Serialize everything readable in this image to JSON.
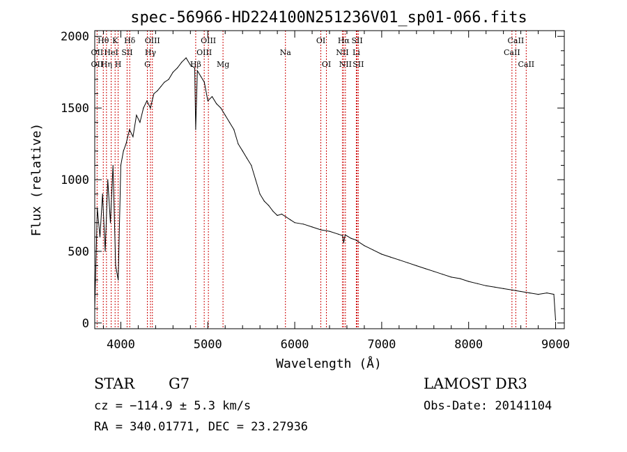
{
  "chart_data": {
    "type": "line",
    "title": "spec-56966-HD224100N251236V01_sp01-066.fits",
    "xlabel": "Wavelength (Å)",
    "ylabel": "Flux (relative)",
    "xlim": [
      3700,
      9100
    ],
    "ylim": [
      -40,
      2040
    ],
    "x_ticks": [
      4000,
      5000,
      6000,
      7000,
      8000,
      9000
    ],
    "y_ticks": [
      0,
      500,
      1000,
      1500,
      2000
    ],
    "series": [
      {
        "name": "flux",
        "x": [
          3700,
          3730,
          3760,
          3790,
          3820,
          3850,
          3880,
          3910,
          3940,
          3970,
          4000,
          4030,
          4060,
          4100,
          4140,
          4180,
          4220,
          4260,
          4300,
          4340,
          4380,
          4420,
          4460,
          4500,
          4550,
          4600,
          4650,
          4700,
          4750,
          4800,
          4850,
          4861,
          4880,
          4920,
          4960,
          5000,
          5050,
          5100,
          5150,
          5200,
          5250,
          5300,
          5350,
          5400,
          5450,
          5500,
          5550,
          5600,
          5650,
          5700,
          5750,
          5800,
          5850,
          5900,
          5950,
          6000,
          6100,
          6200,
          6300,
          6400,
          6500,
          6550,
          6563,
          6580,
          6650,
          6700,
          6800,
          6900,
          7000,
          7100,
          7200,
          7300,
          7400,
          7500,
          7600,
          7700,
          7800,
          7900,
          8000,
          8100,
          8200,
          8300,
          8400,
          8500,
          8600,
          8700,
          8800,
          8900,
          8980,
          9000
        ],
        "y": [
          100,
          800,
          600,
          900,
          500,
          1000,
          700,
          1100,
          400,
          300,
          1100,
          1200,
          1250,
          1350,
          1300,
          1450,
          1400,
          1500,
          1550,
          1500,
          1600,
          1620,
          1650,
          1680,
          1700,
          1750,
          1780,
          1820,
          1850,
          1800,
          1780,
          1350,
          1760,
          1720,
          1680,
          1550,
          1580,
          1530,
          1500,
          1450,
          1400,
          1350,
          1250,
          1200,
          1150,
          1100,
          1000,
          900,
          850,
          820,
          780,
          750,
          760,
          740,
          720,
          700,
          690,
          670,
          650,
          640,
          620,
          610,
          560,
          615,
          590,
          580,
          540,
          510,
          480,
          460,
          440,
          420,
          400,
          380,
          360,
          340,
          320,
          310,
          290,
          275,
          260,
          250,
          240,
          230,
          220,
          210,
          200,
          210,
          200,
          20
        ]
      }
    ],
    "line_labels": [
      {
        "text": "Hθ",
        "wavelength": 3798,
        "row": 1
      },
      {
        "text": "OII",
        "wavelength": 3727,
        "row": 2
      },
      {
        "text": "OII",
        "wavelength": 3727,
        "row": 3
      },
      {
        "text": "K",
        "wavelength": 3934,
        "row": 1
      },
      {
        "text": "HeI",
        "wavelength": 3889,
        "row": 2
      },
      {
        "text": "Hη",
        "wavelength": 3835,
        "row": 3
      },
      {
        "text": "Hδ",
        "wavelength": 4102,
        "row": 1
      },
      {
        "text": "SII",
        "wavelength": 4072,
        "row": 2
      },
      {
        "text": "H",
        "wavelength": 3969,
        "row": 3
      },
      {
        "text": "OIII",
        "wavelength": 4363,
        "row": 1
      },
      {
        "text": "Hγ",
        "wavelength": 4341,
        "row": 2
      },
      {
        "text": "G",
        "wavelength": 4305,
        "row": 3
      },
      {
        "text": "OIII",
        "wavelength": 5007,
        "row": 1
      },
      {
        "text": "OIII",
        "wavelength": 4959,
        "row": 2
      },
      {
        "text": "Hβ",
        "wavelength": 4861,
        "row": 3
      },
      {
        "text": "Mg",
        "wavelength": 5175,
        "row": 3
      },
      {
        "text": "Na",
        "wavelength": 5893,
        "row": 2
      },
      {
        "text": "OI",
        "wavelength": 6300,
        "row": 1
      },
      {
        "text": "OI",
        "wavelength": 6364,
        "row": 3
      },
      {
        "text": "Hα",
        "wavelength": 6563,
        "row": 1
      },
      {
        "text": "SII",
        "wavelength": 6717,
        "row": 1
      },
      {
        "text": "NII",
        "wavelength": 6548,
        "row": 2
      },
      {
        "text": "Li",
        "wavelength": 6708,
        "row": 2
      },
      {
        "text": "NII",
        "wavelength": 6583,
        "row": 3
      },
      {
        "text": "SII",
        "wavelength": 6731,
        "row": 3
      },
      {
        "text": "CaII",
        "wavelength": 8542,
        "row": 1
      },
      {
        "text": "CaII",
        "wavelength": 8498,
        "row": 2
      },
      {
        "text": "CaII",
        "wavelength": 8662,
        "row": 3
      }
    ],
    "line_markers": [
      3727,
      3798,
      3835,
      3889,
      3934,
      3969,
      4072,
      4102,
      4305,
      4341,
      4363,
      4861,
      4959,
      5007,
      5175,
      5893,
      6300,
      6364,
      6548,
      6563,
      6583,
      6708,
      6717,
      6731,
      8498,
      8542,
      8662
    ]
  },
  "footer": {
    "object_type": "STAR",
    "subclass": "G7",
    "survey": "LAMOST DR3",
    "redshift": "cz = −114.9 ± 5.3 km/s",
    "obs_date": "Obs-Date: 20141104",
    "coords": "RA = 340.01771, DEC =  23.27936"
  }
}
